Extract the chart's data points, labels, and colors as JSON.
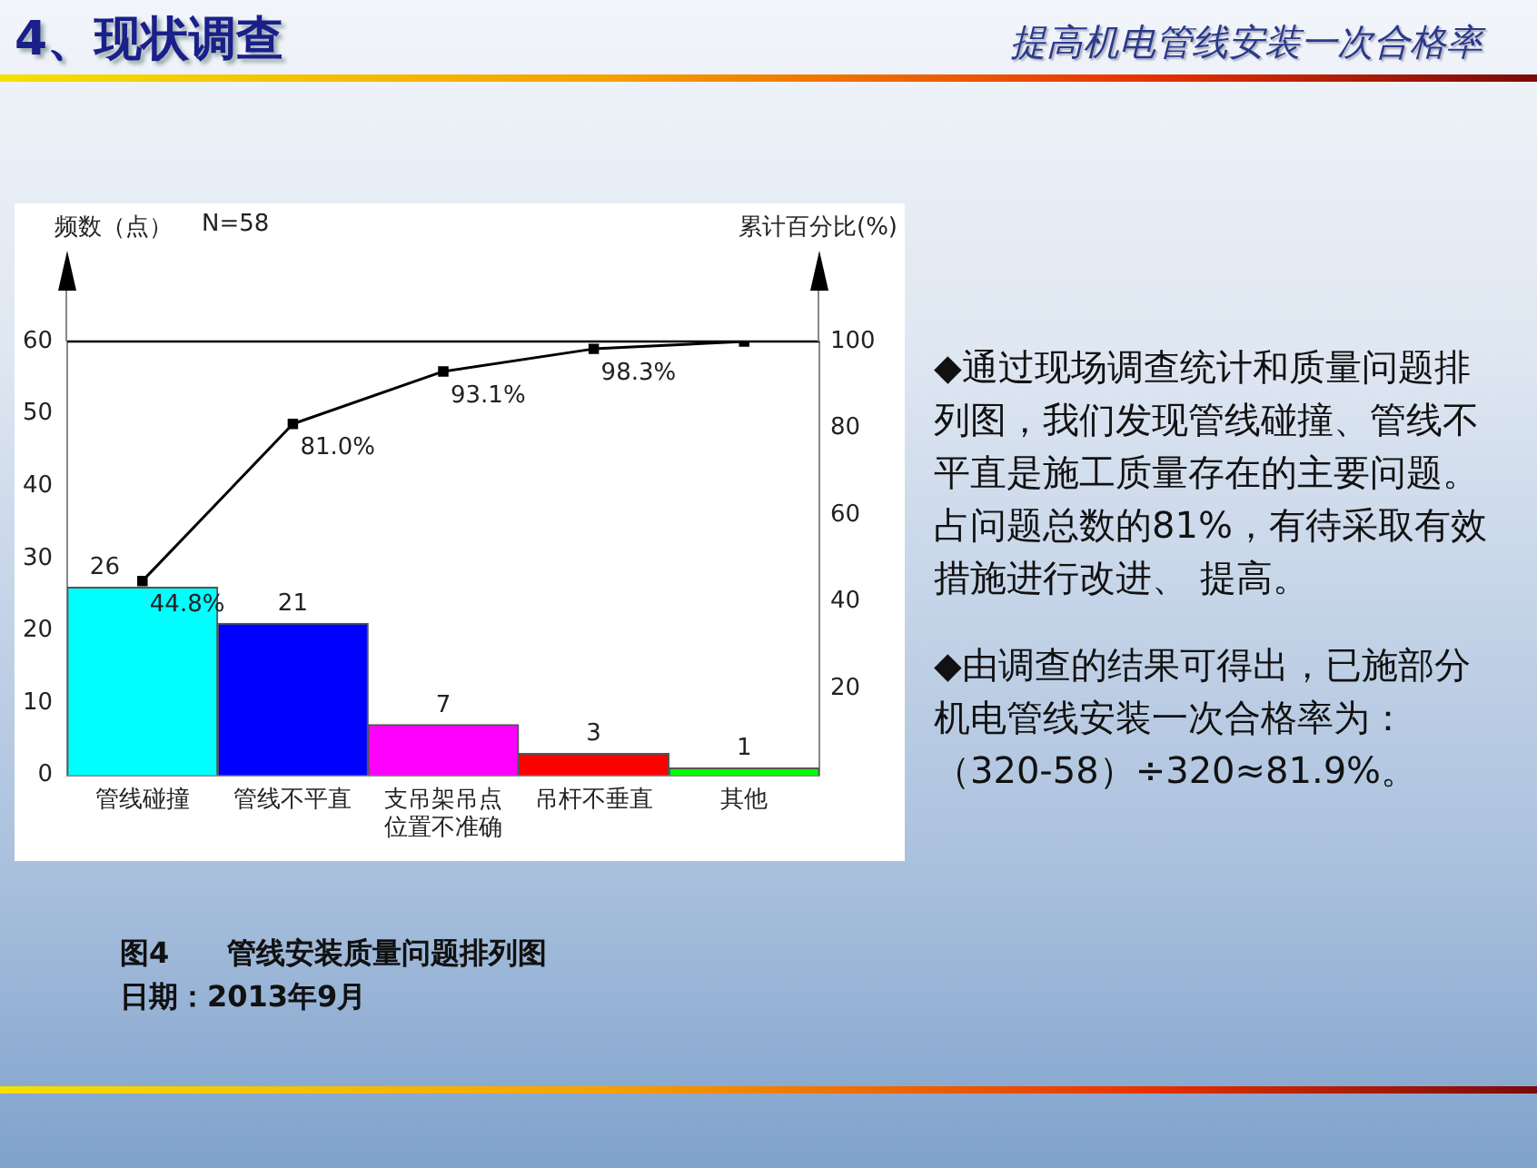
{
  "chart_data": {
    "type": "bar",
    "title": "4、现状调查",
    "subtitle": "提高机电管线安装一次合格率",
    "ylabel": "频数（点）",
    "y2label": "累计百分比(%)",
    "categories": [
      "管线碰撞",
      "管线不平直",
      "支吊架吊点位置不准确",
      "吊杆不垂直",
      "其他"
    ],
    "series": [
      {
        "colors": [
          "#00ffff",
          "#0000ff",
          "#ff00ff",
          "#ff0000",
          "#00ff00"
        ],
        "values": [
          26,
          21,
          7,
          3,
          1
        ]
      },
      {
        "type": "line",
        "axis": "y2",
        "color": "#000000",
        "values": [
          44.8,
          81.0,
          93.1,
          98.3,
          100
        ],
        "value_labels": [
          "44.8%",
          "81.0%",
          "93.1%",
          "98.3%",
          null
        ]
      }
    ],
    "marker": "square",
    "ylim": [
      0,
      60
    ],
    "yticks": [
      0,
      10,
      20,
      30,
      40,
      50,
      60
    ],
    "y2lim": [
      0,
      100
    ],
    "y2ticks": [
      20,
      40,
      60,
      80,
      100
    ],
    "ref_lines": [
      {
        "axis": "y2",
        "value": 100,
        "color": "#000000"
      }
    ],
    "data_labels": true,
    "grid": false,
    "legend": false,
    "annotations": [
      "N=58",
      "◆通过现场调查统计和质量问题排列图，我们发现管线碰撞、管线不平直是施工质量存在的主要问题。占问题总数的81%，有待采取有效措施进行改进、 提高。",
      "◆由调查的结果可得出，已施部分机电管线安装一次合格率为：（320-58）÷320≈81.9%。",
      "图4　　管线安装质量问题排列图",
      "日期：2013年9月"
    ]
  }
}
